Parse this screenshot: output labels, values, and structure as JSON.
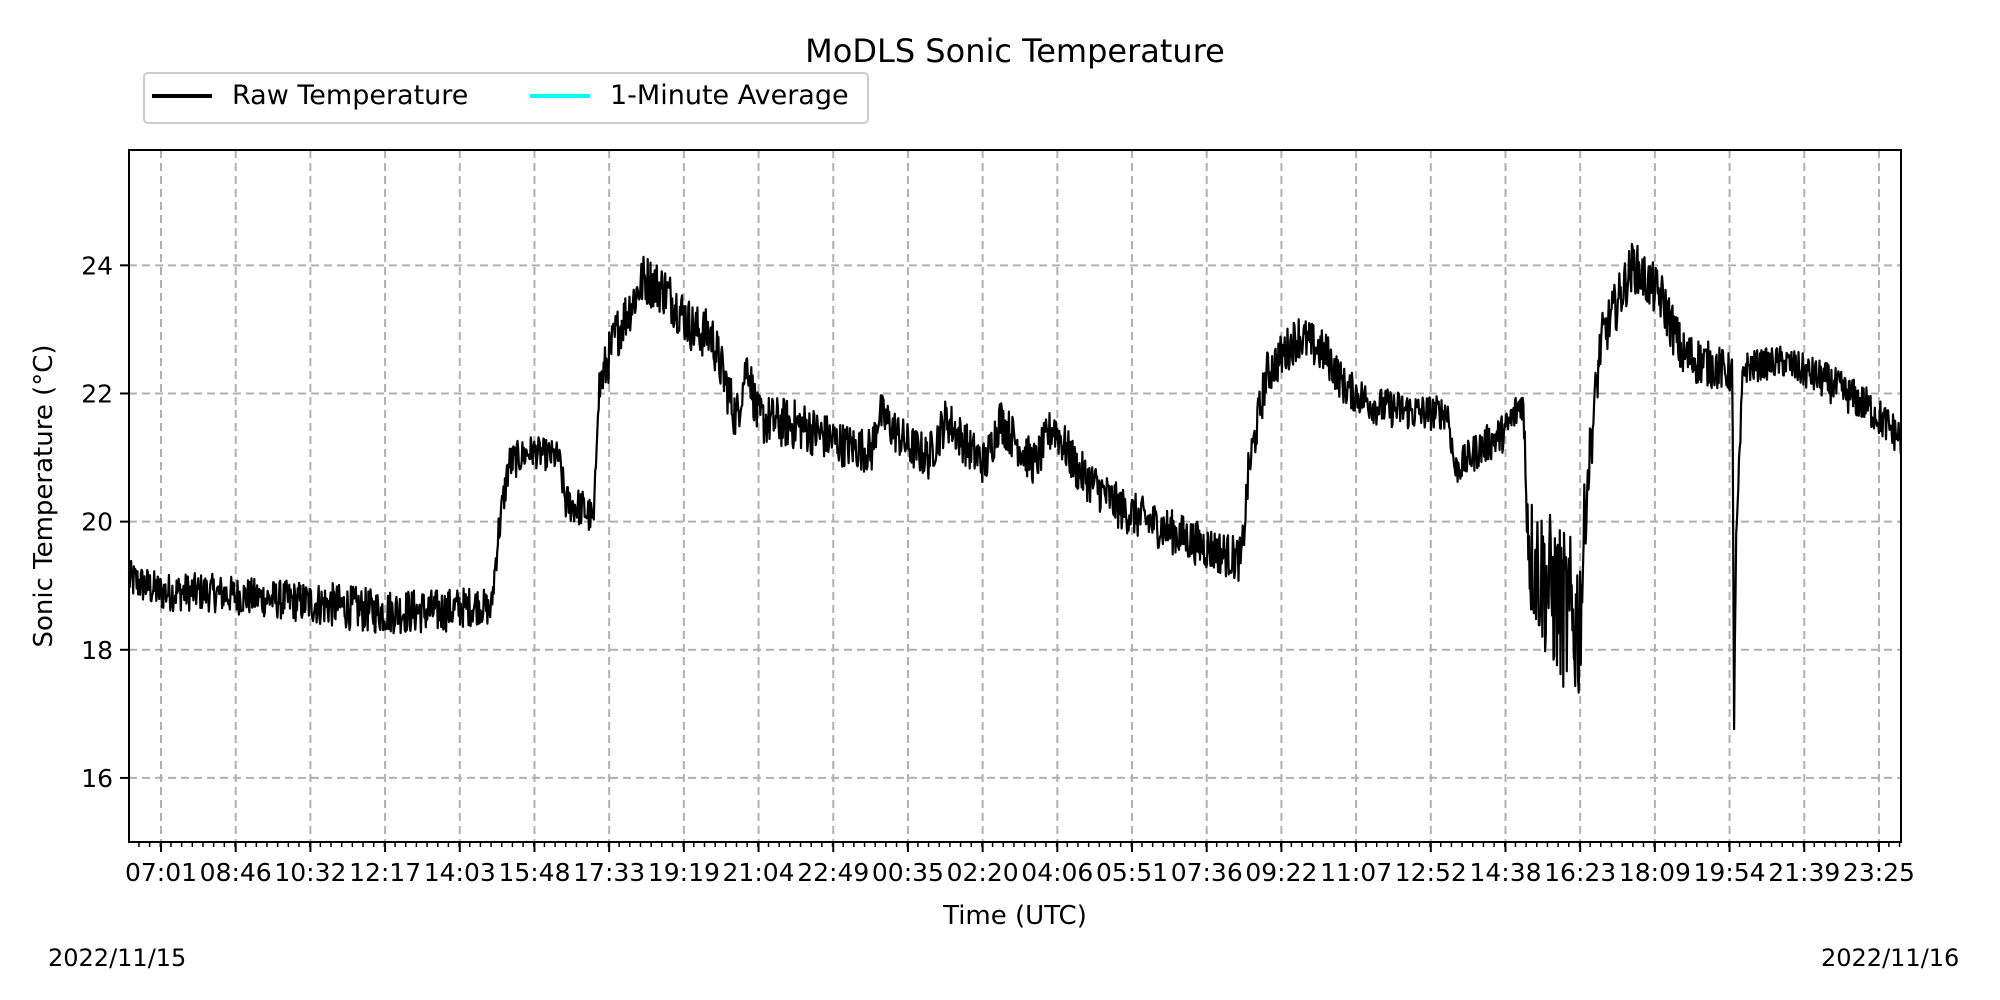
{
  "chart_data": {
    "type": "line",
    "title": "MoDLS Sonic Temperature",
    "xlabel": "Time (UTC)",
    "ylabel": "Sonic Temperature (°C)",
    "ylim": [
      15.0,
      25.8
    ],
    "yticks": [
      16,
      18,
      20,
      22,
      24
    ],
    "x_range": [
      "2022-11-15 06:16",
      "2022-11-16 23:47"
    ],
    "xtick_labels": [
      "07:01",
      "08:46",
      "10:32",
      "12:17",
      "14:03",
      "15:48",
      "17:33",
      "19:19",
      "21:04",
      "22:49",
      "00:35",
      "02:20",
      "04:06",
      "05:51",
      "07:36",
      "09:22",
      "11:07",
      "12:52",
      "14:38",
      "16:23",
      "18:09",
      "19:54",
      "21:39",
      "23:25"
    ],
    "grid": true,
    "legend": {
      "position": "top-left-outside",
      "entries": [
        "Raw Temperature",
        "1-Minute Average"
      ]
    },
    "series": [
      {
        "name": "Raw Temperature",
        "color": "#000000",
        "points": [
          [
            "2022-11-15 06:16",
            19.1,
            0.6
          ],
          [
            "2022-11-15 06:40",
            19.0,
            0.6
          ],
          [
            "2022-11-15 07:00",
            18.9,
            0.6
          ],
          [
            "2022-11-15 08:00",
            18.9,
            0.6
          ],
          [
            "2022-11-15 09:30",
            18.8,
            0.6
          ],
          [
            "2022-11-15 11:00",
            18.7,
            0.7
          ],
          [
            "2022-11-15 12:00",
            18.6,
            0.7
          ],
          [
            "2022-11-15 13:30",
            18.6,
            0.7
          ],
          [
            "2022-11-15 14:30",
            18.7,
            0.6
          ],
          [
            "2022-11-15 14:45",
            18.6,
            0.5
          ],
          [
            "2022-11-15 14:55",
            19.8,
            0.6
          ],
          [
            "2022-11-15 15:10",
            20.9,
            0.6
          ],
          [
            "2022-11-15 15:40",
            21.1,
            0.5
          ],
          [
            "2022-11-15 16:20",
            21.0,
            0.5
          ],
          [
            "2022-11-15 16:30",
            20.3,
            0.6
          ],
          [
            "2022-11-15 16:55",
            20.2,
            0.6
          ],
          [
            "2022-11-15 17:10",
            20.0,
            0.6
          ],
          [
            "2022-11-15 17:15",
            22.0,
            0.8
          ],
          [
            "2022-11-15 17:40",
            22.9,
            0.8
          ],
          [
            "2022-11-15 18:20",
            23.8,
            0.8
          ],
          [
            "2022-11-15 18:50",
            23.6,
            0.8
          ],
          [
            "2022-11-15 19:30",
            23.0,
            0.8
          ],
          [
            "2022-11-15 19:55",
            22.9,
            0.8
          ],
          [
            "2022-11-15 20:30",
            21.6,
            0.8
          ],
          [
            "2022-11-15 20:45",
            22.5,
            0.6
          ],
          [
            "2022-11-15 21:00",
            21.6,
            0.8
          ],
          [
            "2022-11-15 22:00",
            21.5,
            0.8
          ],
          [
            "2022-11-15 23:00",
            21.2,
            0.7
          ],
          [
            "2022-11-15 23:40",
            21.1,
            0.7
          ],
          [
            "2022-11-15 23:50",
            21.7,
            0.7
          ],
          [
            "2022-11-16 00:30",
            21.2,
            0.7
          ],
          [
            "2022-11-16 01:00",
            21.0,
            0.7
          ],
          [
            "2022-11-16 01:25",
            21.6,
            0.7
          ],
          [
            "2022-11-16 02:00",
            21.1,
            0.7
          ],
          [
            "2022-11-16 02:20",
            20.9,
            0.7
          ],
          [
            "2022-11-16 02:40",
            21.6,
            0.7
          ],
          [
            "2022-11-16 03:20",
            21.0,
            0.7
          ],
          [
            "2022-11-16 03:30",
            20.9,
            0.7
          ],
          [
            "2022-11-16 03:55",
            21.5,
            0.7
          ],
          [
            "2022-11-16 04:30",
            20.8,
            0.7
          ],
          [
            "2022-11-16 05:30",
            20.2,
            0.7
          ],
          [
            "2022-11-16 06:30",
            19.9,
            0.7
          ],
          [
            "2022-11-16 07:30",
            19.6,
            0.7
          ],
          [
            "2022-11-16 08:20",
            19.4,
            0.7
          ],
          [
            "2022-11-16 08:30",
            20.8,
            0.7
          ],
          [
            "2022-11-16 08:55",
            22.3,
            0.7
          ],
          [
            "2022-11-16 09:40",
            22.9,
            0.7
          ],
          [
            "2022-11-16 10:20",
            22.6,
            0.7
          ],
          [
            "2022-11-16 10:45",
            22.1,
            0.6
          ],
          [
            "2022-11-16 11:30",
            21.8,
            0.6
          ],
          [
            "2022-11-16 12:30",
            21.7,
            0.6
          ],
          [
            "2022-11-16 13:10",
            21.7,
            0.5
          ],
          [
            "2022-11-16 13:20",
            20.8,
            0.5
          ],
          [
            "2022-11-16 13:50",
            21.1,
            0.6
          ],
          [
            "2022-11-16 14:30",
            21.4,
            0.6
          ],
          [
            "2022-11-16 14:55",
            21.9,
            0.6
          ],
          [
            "2022-11-16 15:05",
            19.5,
            2.0
          ],
          [
            "2022-11-16 15:30",
            19.0,
            2.4
          ],
          [
            "2022-11-16 16:00",
            18.5,
            2.6
          ],
          [
            "2022-11-16 16:15",
            18.4,
            2.6
          ],
          [
            "2022-11-16 16:25",
            20.5,
            1.0
          ],
          [
            "2022-11-16 16:45",
            22.8,
            0.8
          ],
          [
            "2022-11-16 17:30",
            24.0,
            0.8
          ],
          [
            "2022-11-16 18:10",
            23.5,
            0.8
          ],
          [
            "2022-11-16 18:40",
            22.6,
            0.8
          ],
          [
            "2022-11-16 19:30",
            22.4,
            0.7
          ],
          [
            "2022-11-16 19:50",
            22.3,
            0.6
          ],
          [
            "2022-11-16 19:52",
            17.0,
            1.6
          ],
          [
            "2022-11-16 19:55",
            19.5,
            0.6
          ],
          [
            "2022-11-16 20:05",
            22.4,
            0.5
          ],
          [
            "2022-11-16 21:00",
            22.5,
            0.5
          ],
          [
            "2022-11-16 22:00",
            22.2,
            0.6
          ],
          [
            "2022-11-16 23:00",
            21.8,
            0.6
          ],
          [
            "2022-11-16 23:47",
            21.3,
            0.6
          ]
        ]
      },
      {
        "name": "1-Minute Average",
        "color": "#00ffff",
        "points": []
      }
    ]
  },
  "footer": {
    "date_left": "2022/11/15",
    "date_right": "2022/11/16"
  }
}
